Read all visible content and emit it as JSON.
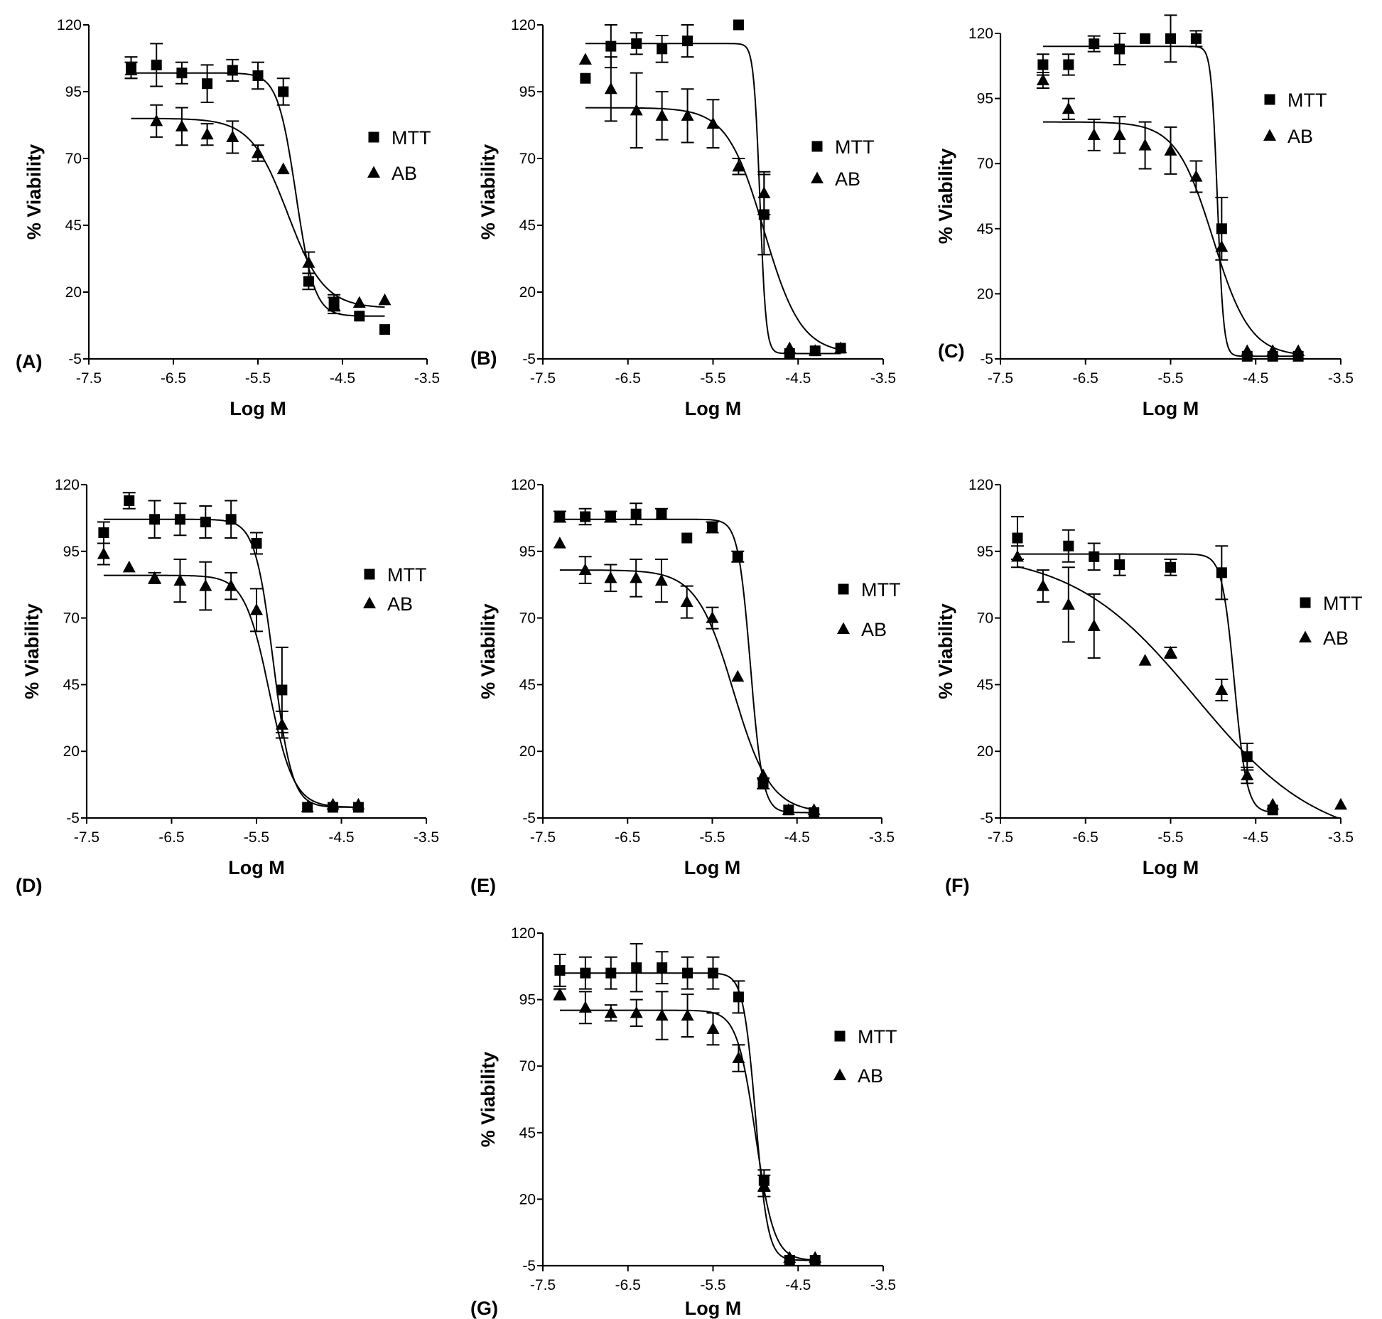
{
  "chart_data": [
    {
      "panel_label": "(A)",
      "type": "scatter",
      "xlabel": "Log M",
      "ylabel": "% Viability",
      "xlim": [
        -7.5,
        -3.5
      ],
      "ylim": [
        -5,
        120
      ],
      "xticks": [
        "-7.5",
        "-6.5",
        "-5.5",
        "-4.5",
        "-3.5"
      ],
      "yticks": [
        "-5",
        "20",
        "45",
        "70",
        "95",
        "120"
      ],
      "series": [
        {
          "name": "MTT",
          "marker": "square",
          "x": [
            -7.0,
            -6.7,
            -6.4,
            -6.1,
            -5.8,
            -5.5,
            -5.2,
            -4.9,
            -4.6,
            -4.3,
            -4.0
          ],
          "y": [
            104,
            105,
            102,
            98,
            103,
            101,
            95,
            24,
            16,
            11,
            6
          ],
          "err": [
            4,
            8,
            4,
            7,
            4,
            5,
            5,
            3,
            3,
            0,
            0
          ],
          "fit": {
            "top": 102,
            "bottom": 11,
            "logIC50": -5.05,
            "hill": -4
          }
        },
        {
          "name": "AB",
          "marker": "triangle",
          "x": [
            -7.0,
            -6.7,
            -6.4,
            -6.1,
            -5.8,
            -5.5,
            -5.2,
            -4.9,
            -4.6,
            -4.3,
            -4.0
          ],
          "y": [
            103,
            84,
            82,
            79,
            78,
            72,
            66,
            31,
            15,
            16,
            17
          ],
          "err": [
            3,
            6,
            7,
            4,
            6,
            3,
            0,
            4,
            3,
            0,
            0
          ],
          "fit": {
            "top": 85,
            "bottom": 14,
            "logIC50": -5.15,
            "hill": -2
          }
        }
      ]
    },
    {
      "panel_label": "(B)",
      "type": "scatter",
      "xlabel": "Log M",
      "ylabel": "% Viability",
      "xlim": [
        -7.5,
        -3.5
      ],
      "ylim": [
        -5,
        120
      ],
      "xticks": [
        "-7.5",
        "-6.5",
        "-5.5",
        "-4.5",
        "-3.5"
      ],
      "yticks": [
        "-5",
        "20",
        "45",
        "70",
        "95",
        "120"
      ],
      "series": [
        {
          "name": "MTT",
          "marker": "square",
          "x": [
            -7.0,
            -6.7,
            -6.4,
            -6.1,
            -5.8,
            -5.2,
            -4.9,
            -4.6,
            -4.3,
            -4.0
          ],
          "y": [
            100,
            112,
            113,
            111,
            114,
            120,
            49,
            -3,
            -2,
            -1
          ],
          "err": [
            0,
            8,
            4,
            5,
            6,
            0,
            15,
            0,
            0,
            0
          ],
          "fit": {
            "top": 113,
            "bottom": -3,
            "logIC50": -4.95,
            "hill": -12
          }
        },
        {
          "name": "AB",
          "marker": "triangle",
          "x": [
            -7.0,
            -6.7,
            -6.4,
            -6.1,
            -5.8,
            -5.5,
            -5.2,
            -4.9,
            -4.6,
            -4.3,
            -4.0
          ],
          "y": [
            107,
            96,
            88,
            86,
            86,
            83,
            67,
            57,
            -1,
            -2,
            -1
          ],
          "err": [
            0,
            12,
            14,
            9,
            10,
            9,
            3,
            8,
            0,
            0,
            0
          ],
          "fit": {
            "top": 89,
            "bottom": -3,
            "logIC50": -4.9,
            "hill": -2
          }
        }
      ]
    },
    {
      "panel_label": "(C)",
      "type": "scatter",
      "xlabel": "Log M",
      "ylabel": "% Viability",
      "xlim": [
        -7.5,
        -3.5
      ],
      "ylim": [
        -5,
        120
      ],
      "xticks": [
        "-7.5",
        "-6.5",
        "-5.5",
        "-4.5",
        "-3.5"
      ],
      "yticks": [
        "-5",
        "20",
        "45",
        "70",
        "95",
        "120"
      ],
      "series": [
        {
          "name": "MTT",
          "marker": "square",
          "x": [
            -7.0,
            -6.7,
            -6.4,
            -6.1,
            -5.8,
            -5.5,
            -5.2,
            -4.9,
            -4.6,
            -4.3,
            -4.0
          ],
          "y": [
            108,
            108,
            116,
            114,
            118,
            118,
            118,
            45,
            -4,
            -4,
            -4
          ],
          "err": [
            4,
            4,
            3,
            6,
            0,
            9,
            3,
            12,
            0,
            0,
            0
          ],
          "fit": {
            "top": 115,
            "bottom": -4,
            "logIC50": -4.95,
            "hill": -12
          }
        },
        {
          "name": "AB",
          "marker": "triangle",
          "x": [
            -7.0,
            -6.7,
            -6.4,
            -6.1,
            -5.8,
            -5.5,
            -5.2,
            -4.9,
            -4.6,
            -4.3,
            -4.0
          ],
          "y": [
            102,
            91,
            81,
            81,
            77,
            75,
            65,
            38,
            -2,
            -2,
            -2
          ],
          "err": [
            3,
            4,
            6,
            7,
            9,
            9,
            6,
            0,
            0,
            0,
            0
          ],
          "fit": {
            "top": 86,
            "bottom": -4,
            "logIC50": -5.0,
            "hill": -2
          }
        }
      ]
    },
    {
      "panel_label": "(D)",
      "type": "scatter",
      "xlabel": "Log M",
      "ylabel": "% Viability",
      "xlim": [
        -7.5,
        -3.5
      ],
      "ylim": [
        -5,
        120
      ],
      "xticks": [
        "-7.5",
        "-6.5",
        "-5.5",
        "-4.5",
        "-3.5"
      ],
      "yticks": [
        "-5",
        "20",
        "45",
        "70",
        "95",
        "120"
      ],
      "series": [
        {
          "name": "MTT",
          "marker": "square",
          "x": [
            -7.3,
            -7.0,
            -6.7,
            -6.4,
            -6.1,
            -5.8,
            -5.5,
            -5.2,
            -4.9,
            -4.6,
            -4.3
          ],
          "y": [
            102,
            114,
            107,
            107,
            106,
            107,
            98,
            43,
            -1,
            -1,
            -1
          ],
          "err": [
            4,
            3,
            7,
            6,
            6,
            7,
            4,
            16,
            0,
            0,
            0
          ],
          "fit": {
            "top": 107,
            "bottom": -1,
            "logIC50": -5.3,
            "hill": -4
          }
        },
        {
          "name": "AB",
          "marker": "triangle",
          "x": [
            -7.3,
            -7.0,
            -6.7,
            -6.4,
            -6.1,
            -5.8,
            -5.5,
            -5.2,
            -4.9,
            -4.6,
            -4.3
          ],
          "y": [
            94,
            89,
            85,
            84,
            82,
            82,
            73,
            30,
            -1,
            0,
            0
          ],
          "err": [
            4,
            0,
            2,
            8,
            9,
            5,
            8,
            5,
            0,
            0,
            0
          ],
          "fit": {
            "top": 86,
            "bottom": -1,
            "logIC50": -5.35,
            "hill": -3
          }
        }
      ]
    },
    {
      "panel_label": "(E)",
      "type": "scatter",
      "xlabel": "Log M",
      "ylabel": "% Viability",
      "xlim": [
        -7.5,
        -3.5
      ],
      "ylim": [
        -5,
        120
      ],
      "xticks": [
        "-7.5",
        "-6.5",
        "-5.5",
        "-4.5",
        "-3.5"
      ],
      "yticks": [
        "-5",
        "20",
        "45",
        "70",
        "95",
        "120"
      ],
      "series": [
        {
          "name": "MTT",
          "marker": "square",
          "x": [
            -7.3,
            -7.0,
            -6.7,
            -6.4,
            -6.1,
            -5.8,
            -5.5,
            -5.2,
            -4.9,
            -4.6,
            -4.3
          ],
          "y": [
            108,
            108,
            108,
            109,
            109,
            100,
            104,
            93,
            8,
            -2,
            -3
          ],
          "err": [
            2,
            3,
            2,
            4,
            2,
            0,
            2,
            2,
            2,
            0,
            0
          ],
          "fit": {
            "top": 107,
            "bottom": -3,
            "logIC50": -5.05,
            "hill": -6
          }
        },
        {
          "name": "AB",
          "marker": "triangle",
          "x": [
            -7.3,
            -7.0,
            -6.7,
            -6.4,
            -6.1,
            -5.8,
            -5.5,
            -5.2,
            -4.9,
            -4.6,
            -4.3
          ],
          "y": [
            98,
            88,
            85,
            85,
            84,
            76,
            70,
            48,
            11,
            -2,
            -2
          ],
          "err": [
            0,
            5,
            5,
            7,
            8,
            6,
            4,
            0,
            0,
            0,
            0
          ],
          "fit": {
            "top": 88,
            "bottom": -3,
            "logIC50": -5.25,
            "hill": -2
          }
        }
      ]
    },
    {
      "panel_label": "(F)",
      "type": "scatter",
      "xlabel": "Log M",
      "ylabel": "% Viability",
      "xlim": [
        -7.5,
        -3.5
      ],
      "ylim": [
        -5,
        120
      ],
      "xticks": [
        "-7.5",
        "-6.5",
        "-5.5",
        "-4.5",
        "-3.5"
      ],
      "yticks": [
        "-5",
        "20",
        "45",
        "70",
        "95",
        "120"
      ],
      "series": [
        {
          "name": "MTT",
          "marker": "square",
          "x": [
            -7.3,
            -6.7,
            -6.4,
            -6.1,
            -5.5,
            -4.9,
            -4.6,
            -4.3
          ],
          "y": [
            100,
            97,
            93,
            90,
            89,
            87,
            18,
            -2
          ],
          "err": [
            8,
            6,
            5,
            4,
            3,
            10,
            5,
            0
          ],
          "fit": {
            "top": 94,
            "bottom": -3,
            "logIC50": -4.75,
            "hill": -6
          }
        },
        {
          "name": "AB",
          "marker": "triangle",
          "x": [
            -7.3,
            -7.0,
            -6.7,
            -6.4,
            -5.8,
            -5.5,
            -4.9,
            -4.6,
            -4.3,
            -3.5
          ],
          "y": [
            93,
            82,
            75,
            67,
            54,
            57,
            43,
            11,
            0,
            0
          ],
          "err": [
            4,
            6,
            14,
            12,
            0,
            2,
            4,
            3,
            0,
            0
          ],
          "fit": {
            "top": 95,
            "bottom": -15,
            "logIC50": -5.2,
            "hill": -0.6
          }
        }
      ]
    },
    {
      "panel_label": "(G)",
      "type": "scatter",
      "xlabel": "Log M",
      "ylabel": "% Viability",
      "xlim": [
        -7.5,
        -3.5
      ],
      "ylim": [
        -5,
        120
      ],
      "xticks": [
        "-7.5",
        "-6.5",
        "-5.5",
        "-4.5",
        "-3.5"
      ],
      "yticks": [
        "-5",
        "20",
        "45",
        "70",
        "95",
        "120"
      ],
      "series": [
        {
          "name": "MTT",
          "marker": "square",
          "x": [
            -7.3,
            -7.0,
            -6.7,
            -6.4,
            -6.1,
            -5.8,
            -5.5,
            -5.2,
            -4.9,
            -4.6,
            -4.3
          ],
          "y": [
            106,
            105,
            105,
            107,
            107,
            105,
            105,
            96,
            27,
            -3,
            -3
          ],
          "err": [
            6,
            6,
            6,
            9,
            6,
            6,
            6,
            6,
            4,
            0,
            0
          ],
          "fit": {
            "top": 105,
            "bottom": -3,
            "logIC50": -5.0,
            "hill": -6
          }
        },
        {
          "name": "AB",
          "marker": "triangle",
          "x": [
            -7.3,
            -7.0,
            -6.7,
            -6.4,
            -6.1,
            -5.8,
            -5.5,
            -5.2,
            -4.9,
            -4.6,
            -4.3
          ],
          "y": [
            97,
            92,
            90,
            90,
            89,
            89,
            84,
            73,
            25,
            -2,
            -2
          ],
          "err": [
            2,
            6,
            3,
            5,
            9,
            8,
            6,
            5,
            4,
            0,
            0
          ],
          "fit": {
            "top": 91,
            "bottom": -3,
            "logIC50": -5.0,
            "hill": -4
          }
        }
      ]
    }
  ],
  "colors": {
    "ink": "#000000",
    "background": "#ffffff"
  }
}
